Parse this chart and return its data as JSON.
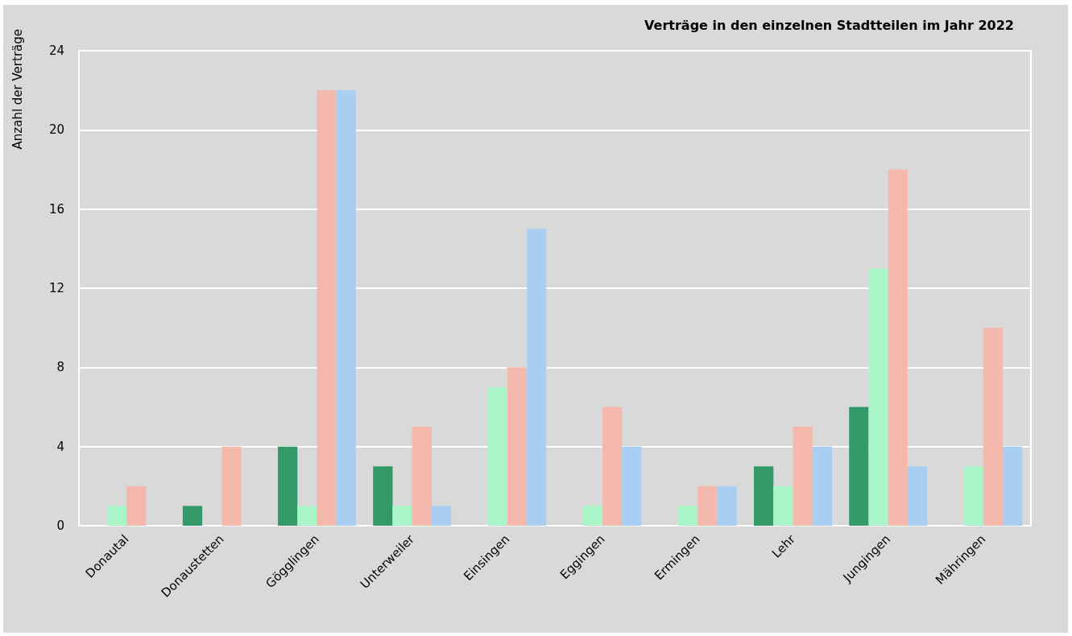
{
  "chart_data": {
    "type": "bar",
    "title": "Verträge in den einzelnen Stadtteilen im Jahr 2022",
    "ylabel": "Anzahl der Verträge",
    "categories": [
      "Donautal",
      "Donaustetten",
      "Gögglingen",
      "Unterweiler",
      "Einsingen",
      "Eggingen",
      "Ermingen",
      "Lehr",
      "Jungingen",
      "Mähringen"
    ],
    "series": [
      {
        "color": "#339966",
        "values": [
          0,
          1,
          4,
          3,
          0,
          0,
          0,
          3,
          6,
          0
        ]
      },
      {
        "color": "#aaf5c8",
        "values": [
          1,
          0,
          1,
          1,
          7,
          1,
          1,
          2,
          13,
          3
        ]
      },
      {
        "color": "#f5b8ac",
        "values": [
          2,
          4,
          22,
          5,
          8,
          6,
          2,
          5,
          18,
          10
        ]
      },
      {
        "color": "#a8cef2",
        "values": [
          0,
          0,
          22,
          1,
          15,
          4,
          2,
          4,
          3,
          4
        ]
      }
    ],
    "ylim": [
      0,
      24
    ],
    "yticks": [
      0,
      4,
      8,
      12,
      16,
      20,
      24
    ],
    "grid": true
  }
}
